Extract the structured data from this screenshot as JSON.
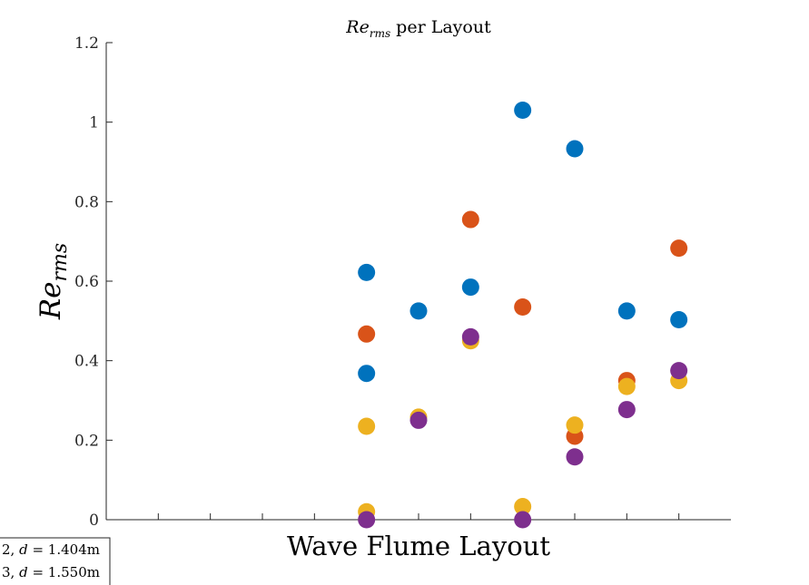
{
  "chart_data": {
    "type": "scatter",
    "title": "Re_rms per Layout",
    "title_parts": {
      "base": "Re",
      "sub": "rms",
      "suffix": " per Layout"
    },
    "xlabel": "Wave Flume Layout",
    "ylabel": "Re_rms",
    "ylabel_parts": {
      "base": "Re",
      "sub": "rms"
    },
    "xlim": [
      0,
      12
    ],
    "ylim": [
      0,
      1.2
    ],
    "yticks": [
      0,
      0.2,
      0.4,
      0.6,
      0.8,
      1,
      1.2
    ],
    "ytick_labels": [
      "0",
      "0.2",
      "0.4",
      "0.6",
      "0.8",
      "1",
      "1.2"
    ],
    "xticks": [
      1,
      2,
      3,
      4,
      5,
      6,
      7,
      8,
      9,
      10,
      11
    ],
    "grid": false,
    "legend_placement": "bottom-left, partially cut off",
    "series": [
      {
        "color": "#0072BD",
        "points": [
          {
            "x": 5,
            "y": 0.622
          },
          {
            "x": 5,
            "y": 0.368
          },
          {
            "x": 6,
            "y": 0.525
          },
          {
            "x": 7,
            "y": 0.585
          },
          {
            "x": 8,
            "y": 1.03
          },
          {
            "x": 9,
            "y": 0.933
          },
          {
            "x": 10,
            "y": 0.525
          },
          {
            "x": 11,
            "y": 0.503
          }
        ]
      },
      {
        "color": "#D95319",
        "points": [
          {
            "x": 5,
            "y": 0.467
          },
          {
            "x": 7,
            "y": 0.755
          },
          {
            "x": 8,
            "y": 0.535
          },
          {
            "x": 9,
            "y": 0.21
          },
          {
            "x": 10,
            "y": 0.35
          },
          {
            "x": 11,
            "y": 0.683
          }
        ]
      },
      {
        "color": "#EDB120",
        "points": [
          {
            "x": 5,
            "y": 0.235
          },
          {
            "x": 5,
            "y": 0.02
          },
          {
            "x": 6,
            "y": 0.258
          },
          {
            "x": 7,
            "y": 0.45
          },
          {
            "x": 8,
            "y": 0.033
          },
          {
            "x": 9,
            "y": 0.238
          },
          {
            "x": 10,
            "y": 0.335
          },
          {
            "x": 11,
            "y": 0.35
          }
        ]
      },
      {
        "color": "#7E2F8E",
        "points": [
          {
            "x": 5,
            "y": 0.0
          },
          {
            "x": 6,
            "y": 0.25
          },
          {
            "x": 7,
            "y": 0.46
          },
          {
            "x": 8,
            "y": 0.0
          },
          {
            "x": 9,
            "y": 0.158
          },
          {
            "x": 10,
            "y": 0.277
          },
          {
            "x": 11,
            "y": 0.375
          }
        ]
      }
    ],
    "legend_entries": [
      {
        "prefix": "2, ",
        "var": "d",
        "value": " = 1.404m"
      },
      {
        "prefix": "3, ",
        "var": "d",
        "value": " = 1.550m"
      }
    ]
  }
}
